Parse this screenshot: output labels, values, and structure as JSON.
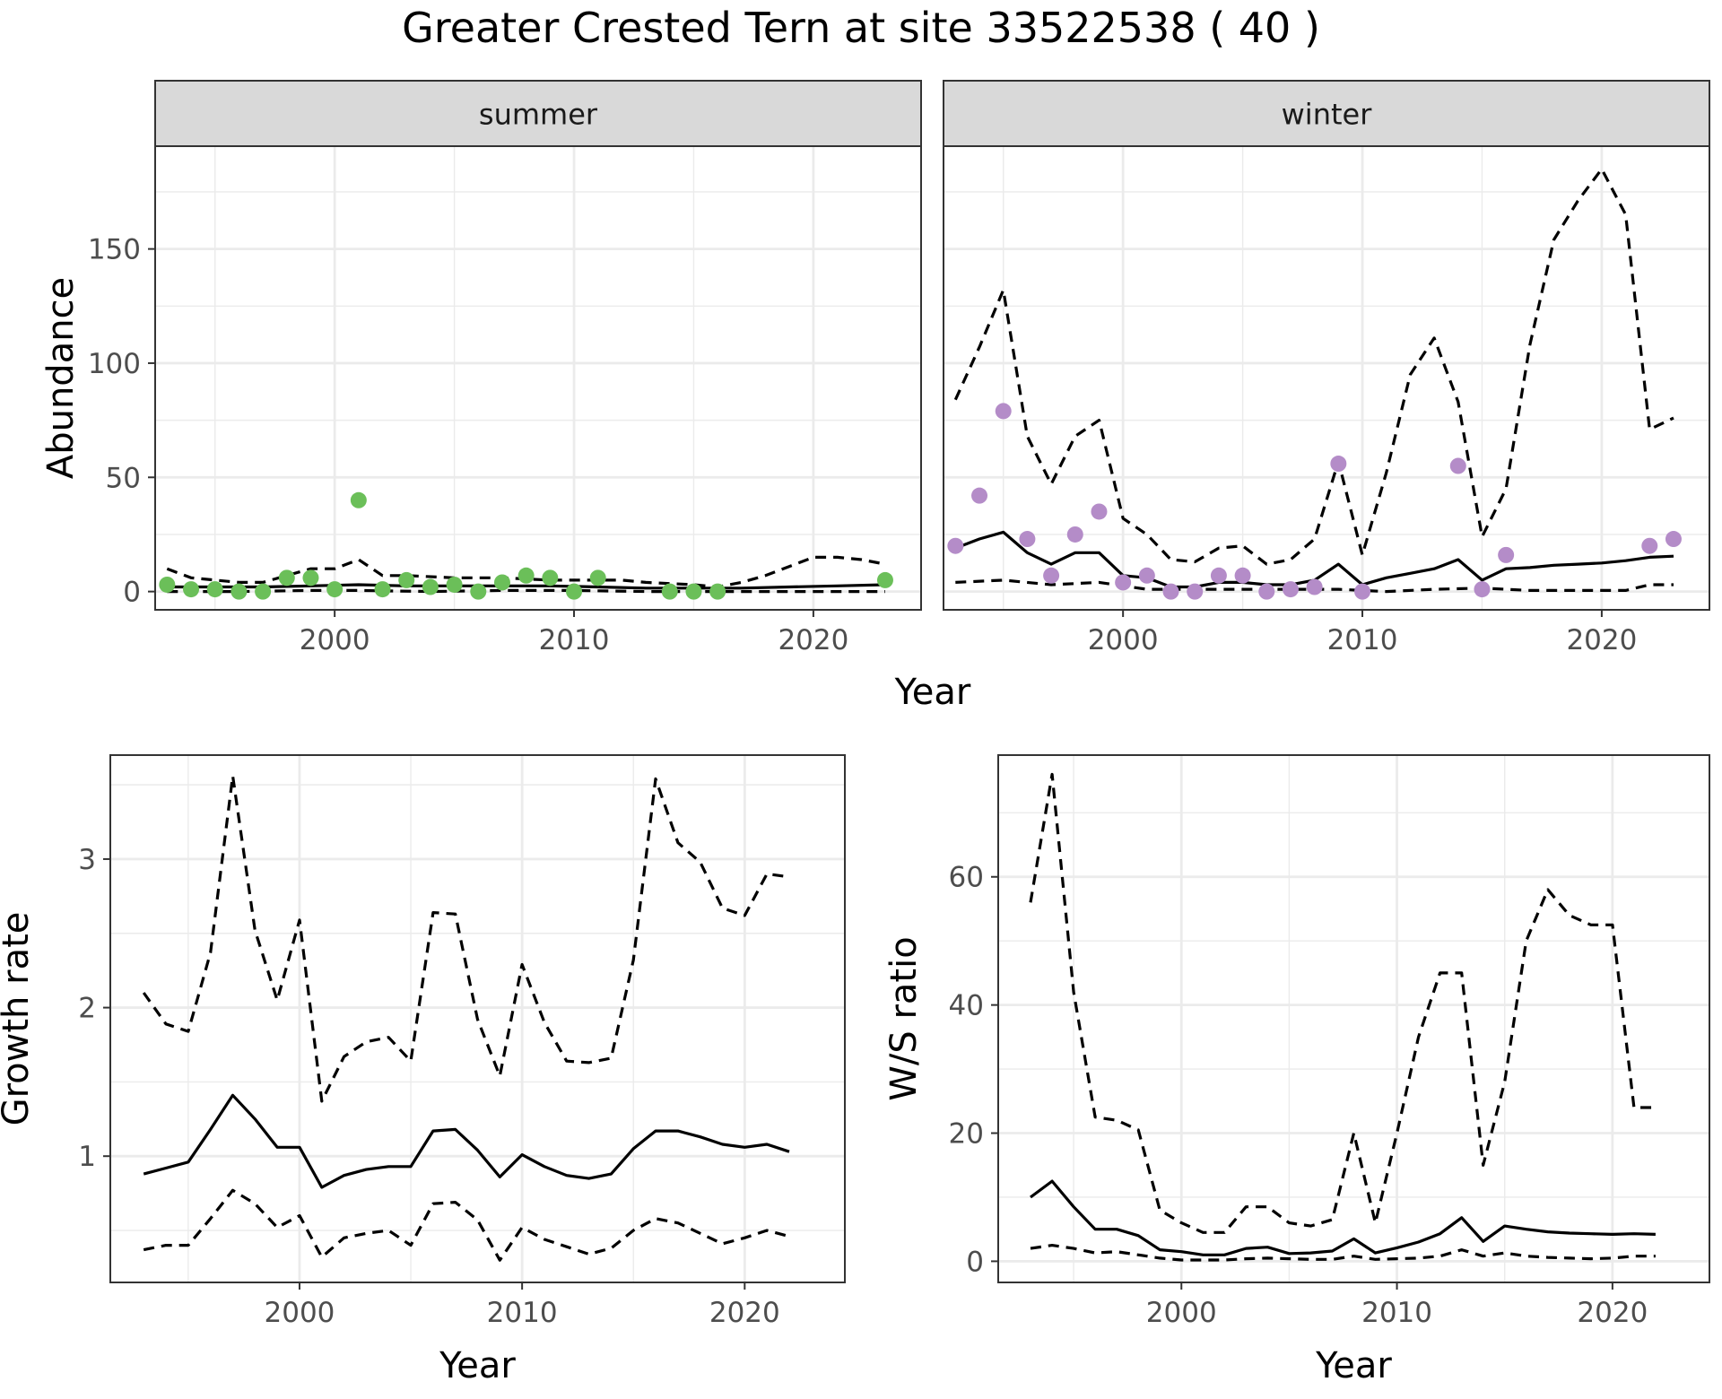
{
  "title": "Greater Crested Tern at site 33522538 ( 40 )",
  "colors": {
    "summer_points": "#6BBF59",
    "winter_points": "#B48CC8",
    "line": "#000000",
    "strip_bg": "#D9D9D9",
    "grid": "#EBEBEB"
  },
  "chart_data": [
    {
      "type": "line",
      "id": "abundance",
      "ylabel": "Abundance",
      "xlabel": "Year",
      "xlim": [
        1992.5,
        2024.5
      ],
      "ylim": [
        -8,
        195
      ],
      "xticks": [
        2000,
        2010,
        2020
      ],
      "yticks": [
        0,
        50,
        100,
        150
      ],
      "grid": true,
      "facets": [
        {
          "label": "summer",
          "point_color": "summer_points",
          "points": {
            "x": [
              1993,
              1994,
              1995,
              1996,
              1997,
              1998,
              1999,
              2000,
              2001,
              2002,
              2003,
              2004,
              2005,
              2006,
              2007,
              2008,
              2009,
              2010,
              2011,
              2014,
              2015,
              2016,
              2023
            ],
            "y": [
              3,
              1,
              1,
              0,
              0,
              6,
              6,
              1,
              40,
              1,
              5,
              2,
              3,
              0,
              4,
              7,
              6,
              0,
              6,
              0,
              0,
              0,
              5
            ]
          },
          "series": [
            {
              "style": "solid",
              "x": [
                1993,
                1995,
                1997,
                1999,
                2001,
                2003,
                2005,
                2007,
                2009,
                2011,
                2013,
                2015,
                2017,
                2019,
                2021,
                2023
              ],
              "y": [
                2,
                2,
                2,
                2.5,
                3,
                2.5,
                2.5,
                2.5,
                2.5,
                2,
                1.5,
                1.5,
                1.5,
                2,
                2.5,
                3
              ]
            },
            {
              "style": "dashed",
              "x": [
                1993,
                1994,
                1996,
                1997,
                1998,
                1999,
                2000,
                2001,
                2002,
                2003,
                2005,
                2007,
                2009,
                2011,
                2012,
                2013,
                2015,
                2016,
                2017,
                2018,
                2019,
                2020,
                2021,
                2022,
                2023
              ],
              "y": [
                10,
                6,
                4,
                4,
                7,
                10,
                10,
                14,
                7,
                7,
                6,
                6,
                5,
                5,
                5,
                4,
                3,
                2,
                4,
                7,
                11,
                15,
                15,
                14,
                12
              ]
            },
            {
              "style": "dashed",
              "x": [
                1993,
                1996,
                1999,
                2001,
                2004,
                2007,
                2010,
                2013,
                2016,
                2019,
                2022,
                2023
              ],
              "y": [
                0,
                0,
                0.5,
                0.5,
                0,
                0.5,
                0.5,
                0,
                0,
                0,
                0,
                0
              ]
            }
          ]
        },
        {
          "label": "winter",
          "point_color": "winter_points",
          "points": {
            "x": [
              1993,
              1994,
              1995,
              1996,
              1997,
              1998,
              1999,
              2000,
              2001,
              2002,
              2003,
              2004,
              2005,
              2006,
              2007,
              2008,
              2009,
              2010,
              2014,
              2015,
              2016,
              2022,
              2023
            ],
            "y": [
              20,
              42,
              79,
              23,
              7,
              25,
              35,
              4,
              7,
              0,
              0,
              7,
              7,
              0,
              1,
              2,
              56,
              0,
              55,
              1,
              16,
              20,
              23
            ]
          },
          "series": [
            {
              "style": "solid",
              "x": [
                1993,
                1994,
                1995,
                1996,
                1997,
                1998,
                1999,
                2000,
                2001,
                2002,
                2003,
                2004,
                2005,
                2006,
                2007,
                2008,
                2009,
                2010,
                2011,
                2012,
                2013,
                2014,
                2015,
                2016,
                2017,
                2018,
                2019,
                2020,
                2021,
                2022,
                2023
              ],
              "y": [
                19,
                23,
                26,
                17,
                12,
                17,
                17,
                7,
                6,
                2,
                2,
                4,
                4,
                3,
                3,
                5,
                12,
                3,
                6,
                8,
                10,
                14,
                5,
                10,
                10.5,
                11.5,
                12,
                12.5,
                13.5,
                15,
                15.5
              ]
            },
            {
              "style": "dashed",
              "x": [
                1993,
                1994,
                1995,
                1996,
                1997,
                1998,
                1999,
                2000,
                2001,
                2002,
                2003,
                2004,
                2005,
                2006,
                2007,
                2008,
                2009,
                2010,
                2011,
                2012,
                2013,
                2014,
                2015,
                2016,
                2017,
                2018,
                2019,
                2020,
                2021,
                2022,
                2023
              ],
              "y": [
                84,
                107,
                132,
                68,
                47,
                68,
                75,
                32,
                25,
                14,
                13,
                19,
                20,
                12,
                14,
                23,
                57,
                16,
                52,
                95,
                111,
                83,
                24,
                45,
                108,
                154,
                171,
                185,
                165,
                71,
                76
              ]
            },
            {
              "style": "dashed",
              "x": [
                1993,
                1995,
                1997,
                1999,
                2001,
                2003,
                2005,
                2007,
                2009,
                2011,
                2013,
                2015,
                2017,
                2019,
                2021,
                2022,
                2023
              ],
              "y": [
                4,
                5,
                3,
                4,
                1,
                1,
                1,
                1,
                1,
                0,
                1,
                1.5,
                0.5,
                0.5,
                0.5,
                3,
                3
              ]
            }
          ]
        }
      ]
    },
    {
      "type": "line",
      "id": "growth",
      "ylabel": "Growth rate",
      "xlabel": "Year",
      "xlim": [
        1991.5,
        2024.5
      ],
      "ylim": [
        0.15,
        3.7
      ],
      "xticks": [
        2000,
        2010,
        2020
      ],
      "yticks": [
        1,
        2,
        3
      ],
      "grid": true,
      "series": [
        {
          "style": "solid",
          "x": [
            1993,
            1994,
            1995,
            1996,
            1997,
            1998,
            1999,
            2000,
            2001,
            2002,
            2003,
            2004,
            2005,
            2006,
            2007,
            2008,
            2009,
            2010,
            2011,
            2012,
            2013,
            2014,
            2015,
            2016,
            2017,
            2018,
            2019,
            2020,
            2021,
            2022
          ],
          "y": [
            0.88,
            0.92,
            0.96,
            1.18,
            1.41,
            1.25,
            1.06,
            1.06,
            0.79,
            0.87,
            0.91,
            0.93,
            0.93,
            1.17,
            1.18,
            1.04,
            0.86,
            1.01,
            0.93,
            0.87,
            0.85,
            0.88,
            1.05,
            1.17,
            1.17,
            1.13,
            1.08,
            1.06,
            1.08,
            1.03
          ]
        },
        {
          "style": "dashed",
          "x": [
            1993,
            1994,
            1995,
            1996,
            1997,
            1998,
            1999,
            2000,
            2001,
            2002,
            2003,
            2004,
            2005,
            2006,
            2007,
            2008,
            2009,
            2010,
            2011,
            2012,
            2013,
            2014,
            2015,
            2016,
            2017,
            2018,
            2019,
            2020,
            2021,
            2022
          ],
          "y": [
            2.1,
            1.89,
            1.84,
            2.37,
            3.56,
            2.52,
            2.05,
            2.59,
            1.37,
            1.67,
            1.77,
            1.8,
            1.64,
            2.64,
            2.63,
            1.92,
            1.54,
            2.29,
            1.9,
            1.64,
            1.63,
            1.66,
            2.32,
            3.54,
            3.11,
            2.98,
            2.67,
            2.62,
            2.9,
            2.88
          ]
        },
        {
          "style": "dashed",
          "x": [
            1993,
            1994,
            1995,
            1996,
            1997,
            1998,
            1999,
            2000,
            2001,
            2002,
            2003,
            2004,
            2005,
            2006,
            2007,
            2008,
            2009,
            2010,
            2011,
            2012,
            2013,
            2014,
            2015,
            2016,
            2017,
            2018,
            2019,
            2020,
            2021,
            2022
          ],
          "y": [
            0.37,
            0.4,
            0.4,
            0.58,
            0.77,
            0.68,
            0.52,
            0.6,
            0.32,
            0.45,
            0.48,
            0.5,
            0.4,
            0.68,
            0.69,
            0.57,
            0.3,
            0.52,
            0.44,
            0.39,
            0.34,
            0.38,
            0.5,
            0.58,
            0.55,
            0.48,
            0.41,
            0.45,
            0.5,
            0.46
          ]
        }
      ]
    },
    {
      "type": "line",
      "id": "ratio",
      "ylabel": "W/S ratio",
      "xlabel": "Year",
      "xlim": [
        1991.5,
        2024.5
      ],
      "ylim": [
        -3.3,
        79
      ],
      "xticks": [
        2000,
        2010,
        2020
      ],
      "yticks": [
        0,
        20,
        40,
        60
      ],
      "grid": true,
      "series": [
        {
          "style": "solid",
          "x": [
            1993,
            1994,
            1995,
            1996,
            1997,
            1998,
            1999,
            2000,
            2001,
            2002,
            2003,
            2004,
            2005,
            2006,
            2007,
            2008,
            2009,
            2010,
            2011,
            2012,
            2013,
            2014,
            2015,
            2016,
            2017,
            2018,
            2019,
            2020,
            2021,
            2022
          ],
          "y": [
            10,
            12.5,
            8.5,
            5,
            5,
            4,
            1.8,
            1.5,
            1,
            1,
            2,
            2.2,
            1.2,
            1.3,
            1.6,
            3.5,
            1.3,
            2.1,
            3,
            4.3,
            6.8,
            3.1,
            5.5,
            5,
            4.6,
            4.4,
            4.3,
            4.2,
            4.3,
            4.2
          ]
        },
        {
          "style": "dashed",
          "x": [
            1993,
            1994,
            1995,
            1996,
            1997,
            1998,
            1999,
            2000,
            2001,
            2002,
            2003,
            2004,
            2005,
            2006,
            2007,
            2008,
            2009,
            2010,
            2011,
            2012,
            2013,
            2014,
            2015,
            2016,
            2017,
            2018,
            2019,
            2020,
            2021,
            2022
          ],
          "y": [
            56,
            76,
            42,
            22.5,
            22,
            20.5,
            8,
            6,
            4.5,
            4.5,
            8.5,
            8.5,
            6,
            5.5,
            6.5,
            20,
            6,
            20,
            35,
            45,
            45,
            15,
            28,
            50,
            58,
            54,
            52.5,
            52.5,
            24,
            24
          ]
        },
        {
          "style": "dashed",
          "x": [
            1993,
            1994,
            1995,
            1996,
            1997,
            1998,
            1999,
            2000,
            2001,
            2002,
            2003,
            2004,
            2005,
            2006,
            2007,
            2008,
            2009,
            2010,
            2011,
            2012,
            2013,
            2014,
            2015,
            2016,
            2017,
            2018,
            2019,
            2020,
            2021,
            2022
          ],
          "y": [
            2,
            2.5,
            2,
            1.3,
            1.5,
            1,
            0.5,
            0.2,
            0.2,
            0.2,
            0.4,
            0.5,
            0.4,
            0.3,
            0.3,
            0.8,
            0.3,
            0.4,
            0.5,
            0.8,
            1.8,
            0.8,
            1.3,
            0.8,
            0.6,
            0.5,
            0.4,
            0.5,
            0.8,
            0.8
          ]
        }
      ]
    }
  ]
}
